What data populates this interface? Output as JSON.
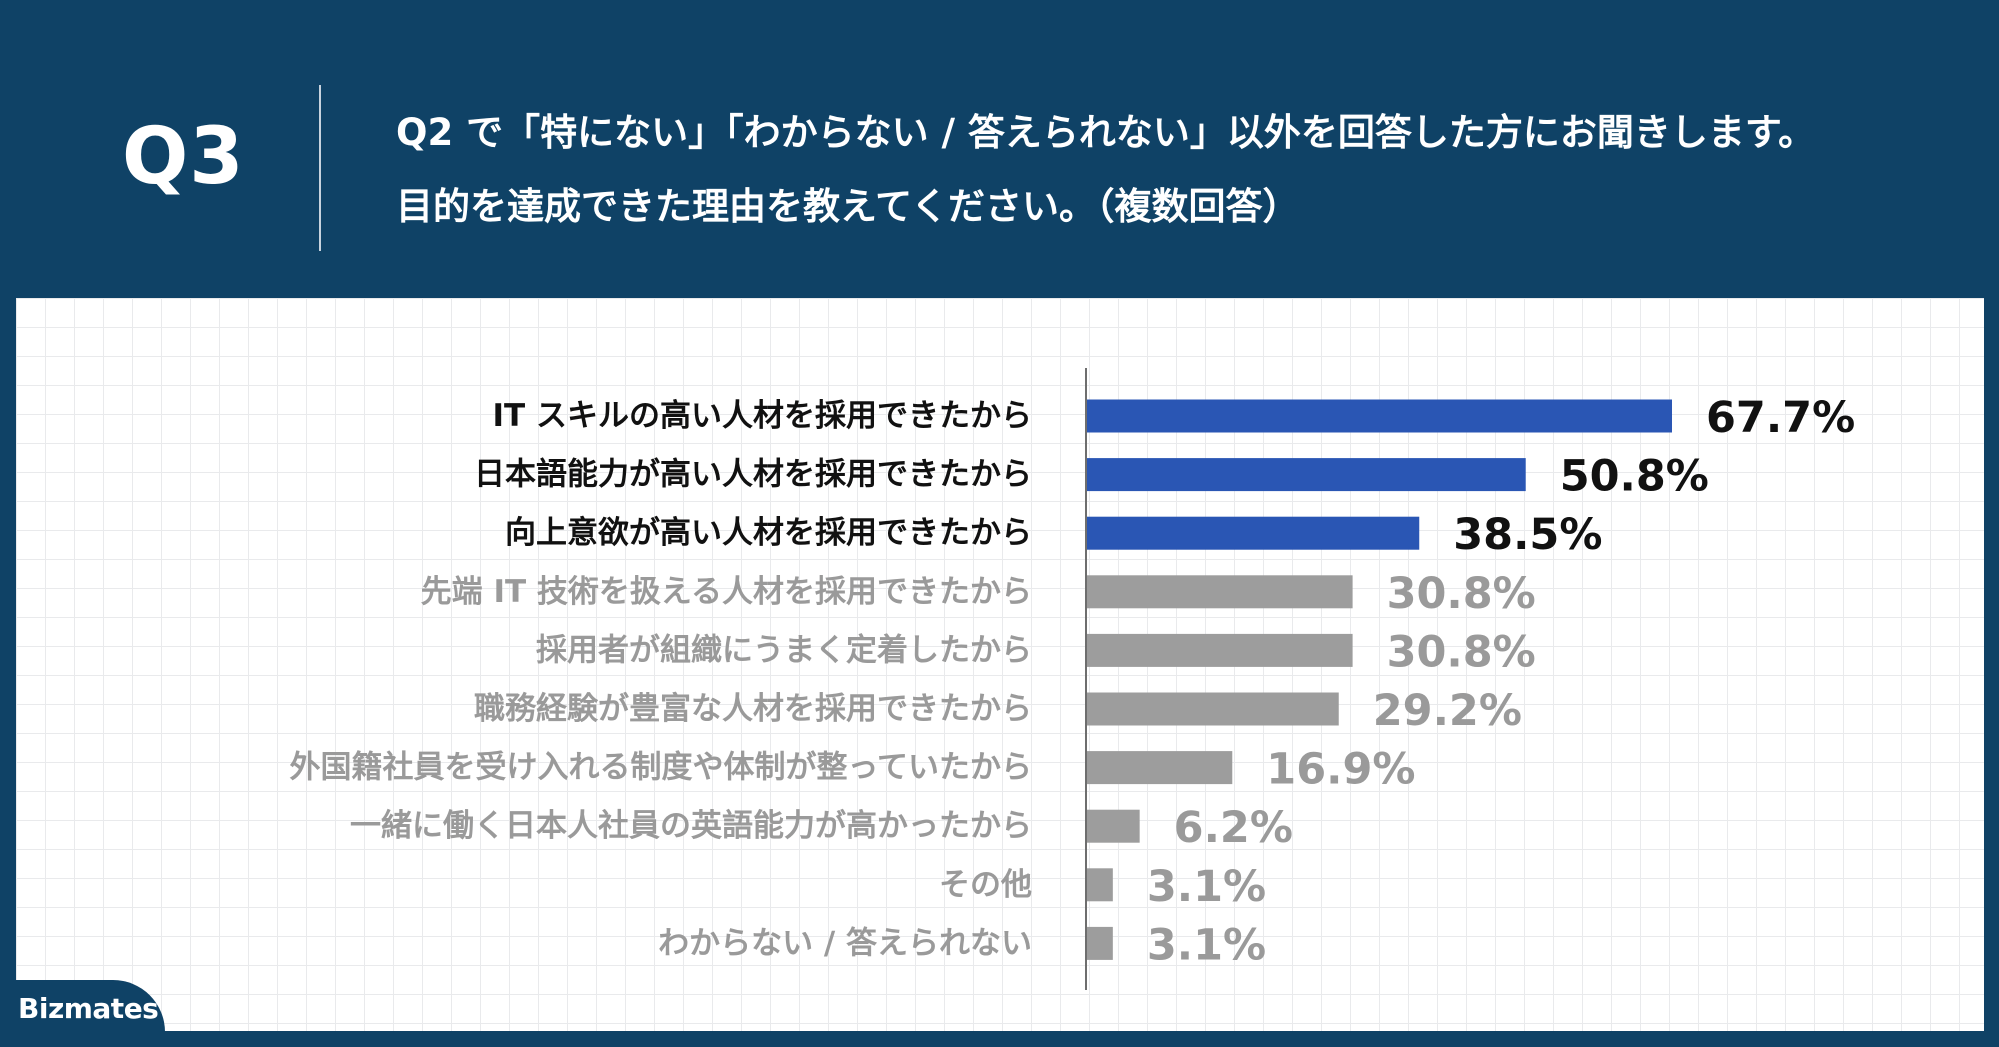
{
  "header": {
    "question_number": "Q3",
    "question_line1": "Q2 で「特にない」「わからない / 答えられない」以外を回答した方にお聞きします。",
    "question_line2": "目的を達成できた理由を教えてください。（複数回答）"
  },
  "brand": {
    "logo_text": "Bizmates"
  },
  "colors": {
    "background": "#0f4266",
    "highlight_bar": "#2a56b4",
    "normal_bar": "#9d9d9d",
    "highlight_text": "#111111",
    "normal_text": "#9a9a9a"
  },
  "chart_data": {
    "type": "bar",
    "orientation": "horizontal",
    "title": "",
    "xlabel": "",
    "ylabel": "",
    "xlim": [
      0,
      100
    ],
    "grid": false,
    "legend": "none",
    "categories": [
      "IT スキルの高い人材を採用できたから",
      "日本語能力が高い人材を採用できたから",
      "向上意欲が高い人材を採用できたから",
      "先端 IT 技術を扱える人材を採用できたから",
      "採用者が組織にうまく定着したから",
      "職務経験が豊富な人材を採用できたから",
      "外国籍社員を受け入れる制度や体制が整っていたから",
      "一緒に働く日本人社員の英語能力が高かったから",
      "その他",
      "わからない / 答えられない"
    ],
    "values": [
      67.7,
      50.8,
      38.5,
      30.8,
      30.8,
      29.2,
      16.9,
      6.2,
      3.1,
      3.1
    ],
    "value_labels": [
      "67.7%",
      "50.8%",
      "38.5%",
      "30.8%",
      "30.8%",
      "29.2%",
      "16.9%",
      "6.2%",
      "3.1%",
      "3.1%"
    ],
    "highlighted": [
      true,
      true,
      true,
      false,
      false,
      false,
      false,
      false,
      false,
      false
    ]
  }
}
